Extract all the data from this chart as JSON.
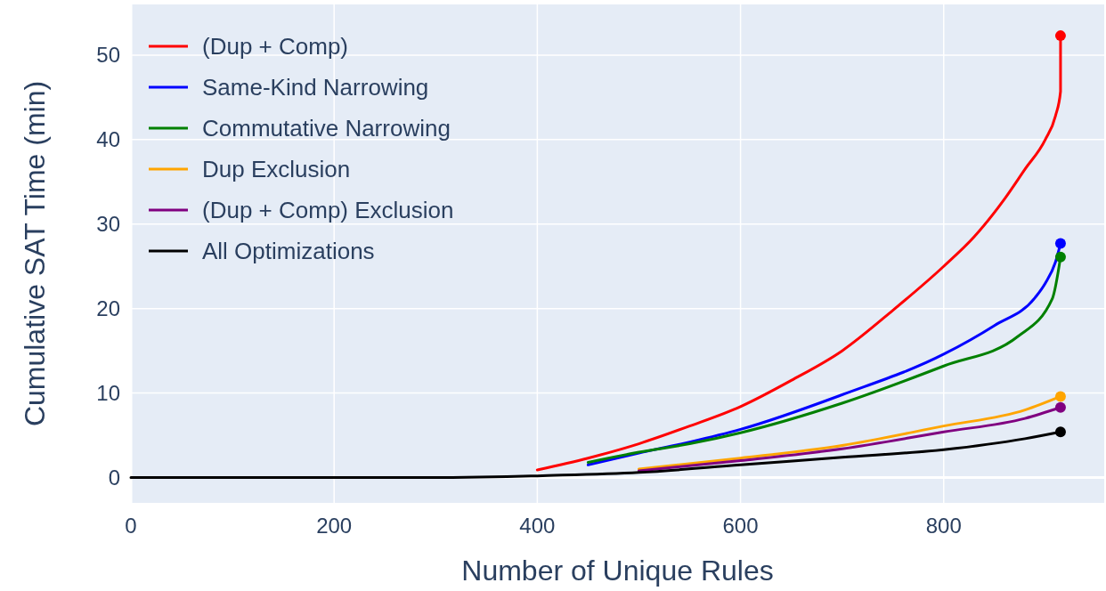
{
  "chart_data": {
    "type": "line",
    "xlabel": "Number of Unique Rules",
    "ylabel": "Cumulative SAT Time (min)",
    "xlim": [
      0,
      958
    ],
    "ylim": [
      -3,
      56
    ],
    "xticks": [
      0,
      200,
      400,
      600,
      800
    ],
    "yticks": [
      0,
      10,
      20,
      30,
      40,
      50
    ],
    "grid": true,
    "legend": "top left",
    "line_style": "solid",
    "series": [
      {
        "name": "(Dup + Comp)",
        "color": "#ff0000",
        "x": [
          400,
          450,
          500,
          550,
          600,
          650,
          700,
          750,
          800,
          830,
          860,
          880,
          900,
          910,
          915,
          915
        ],
        "values": [
          0.9,
          2.3,
          4.0,
          6.1,
          8.4,
          11.5,
          15,
          19.8,
          25,
          28.5,
          33,
          36.5,
          40,
          42.8,
          45.7,
          52.3
        ]
      },
      {
        "name": "Same-Kind Narrowing",
        "color": "#0000ff",
        "x": [
          450,
          500,
          550,
          600,
          700,
          800,
          850,
          890,
          900,
          910,
          915
        ],
        "values": [
          1.5,
          2.9,
          4.2,
          5.7,
          9.8,
          14.6,
          18,
          21.3,
          23,
          25.5,
          27.7
        ]
      },
      {
        "name": "Commutative Narrowing",
        "color": "#008000",
        "x": [
          450,
          500,
          550,
          600,
          700,
          800,
          873,
          907,
          915
        ],
        "values": [
          1.8,
          3.0,
          4.0,
          5.3,
          8.8,
          13.2,
          16.7,
          21.2,
          26.1
        ]
      },
      {
        "name": "Dup Exclusion",
        "color": "#ffa500",
        "x": [
          500,
          600,
          700,
          800,
          880,
          915
        ],
        "values": [
          1.0,
          2.3,
          3.8,
          6.1,
          8.0,
          9.6
        ]
      },
      {
        "name": "(Dup + Comp) Exclusion",
        "color": "#800080",
        "x": [
          500,
          600,
          700,
          800,
          880,
          915
        ],
        "values": [
          0.8,
          2.0,
          3.4,
          5.4,
          7.0,
          8.3
        ]
      },
      {
        "name": "All Optimizations",
        "color": "#000000",
        "x": [
          0,
          100,
          200,
          300,
          370,
          400,
          500,
          600,
          700,
          800,
          880,
          915
        ],
        "values": [
          0,
          0,
          0,
          0,
          0.1,
          0.2,
          0.6,
          1.5,
          2.4,
          3.3,
          4.6,
          5.4
        ]
      },
      {
        "type": "scatter",
        "color": "#ff0000",
        "x": [
          915
        ],
        "values": [
          52.3
        ]
      },
      {
        "type": "scatter",
        "color": "#0000ff",
        "x": [
          915
        ],
        "values": [
          27.7
        ]
      },
      {
        "type": "scatter",
        "color": "#008000",
        "x": [
          915
        ],
        "values": [
          26.1
        ]
      },
      {
        "type": "scatter",
        "color": "#ffa500",
        "x": [
          915
        ],
        "values": [
          9.6
        ]
      },
      {
        "type": "scatter",
        "color": "#800080",
        "x": [
          915
        ],
        "values": [
          8.3
        ]
      },
      {
        "type": "scatter",
        "color": "#000000",
        "x": [
          915
        ],
        "values": [
          5.4
        ]
      }
    ]
  }
}
